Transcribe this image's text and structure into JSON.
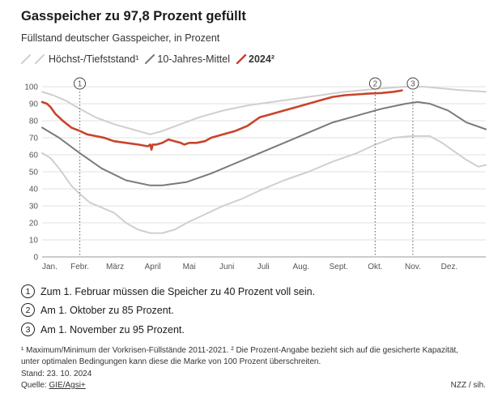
{
  "header": {
    "title": "Gasspeicher zu 97,8 Prozent gefüllt",
    "subtitle": "Füllstand deutscher Gasspeicher, in Prozent"
  },
  "legend": {
    "minmax": "Höchst-/Tiefststand¹",
    "mean": "10-Jahres-Mittel",
    "current": "2024²"
  },
  "colors": {
    "current": "#c9432b",
    "mean": "#7a7a7a",
    "minmax": "#cfcfcf",
    "grid": "#e2e2e2",
    "marker": "#777777"
  },
  "chart_data": {
    "type": "line",
    "x_unit": "day_of_year",
    "xlim": [
      1,
      366
    ],
    "ylim": [
      0,
      100
    ],
    "y_ticks": [
      0,
      10,
      20,
      30,
      40,
      50,
      60,
      70,
      80,
      90,
      100
    ],
    "x_ticks": [
      {
        "day": 1,
        "label": "Jan."
      },
      {
        "day": 32,
        "label": "Febr."
      },
      {
        "day": 61,
        "label": "März"
      },
      {
        "day": 92,
        "label": "April"
      },
      {
        "day": 122,
        "label": "Mai"
      },
      {
        "day": 153,
        "label": "Juni"
      },
      {
        "day": 183,
        "label": "Juli"
      },
      {
        "day": 214,
        "label": "Aug."
      },
      {
        "day": 245,
        "label": "Sept."
      },
      {
        "day": 275,
        "label": "Okt."
      },
      {
        "day": 306,
        "label": "Nov."
      },
      {
        "day": 336,
        "label": "Dez."
      }
    ],
    "markers": [
      {
        "day": 32,
        "label": "1",
        "target": 40
      },
      {
        "day": 275,
        "label": "2",
        "target": 85
      },
      {
        "day": 306,
        "label": "3",
        "target": 95
      }
    ],
    "series": [
      {
        "name": "Höchst-/Tiefststand¹",
        "role": "max",
        "x": [
          1,
          10,
          20,
          32,
          45,
          60,
          75,
          90,
          100,
          115,
          130,
          150,
          170,
          190,
          210,
          230,
          250,
          265,
          280,
          300,
          315,
          330,
          345,
          366
        ],
        "y": [
          97,
          95,
          92,
          87,
          82,
          78,
          75,
          72,
          74,
          78,
          82,
          86,
          89,
          91,
          93,
          95,
          97,
          98,
          99,
          100,
          100,
          99,
          98,
          97
        ]
      },
      {
        "name": "Höchst-/Tiefststand¹",
        "role": "min",
        "x": [
          1,
          8,
          15,
          25,
          32,
          40,
          50,
          60,
          70,
          80,
          90,
          100,
          110,
          120,
          135,
          150,
          165,
          180,
          200,
          220,
          240,
          260,
          275,
          290,
          305,
          320,
          330,
          340,
          350,
          360,
          366
        ],
        "y": [
          61,
          58,
          52,
          42,
          37,
          32,
          29,
          26,
          20,
          16,
          14,
          14,
          16,
          20,
          25,
          30,
          34,
          39,
          45,
          50,
          56,
          61,
          66,
          70,
          71,
          71,
          67,
          62,
          57,
          53,
          54
        ]
      },
      {
        "name": "10-Jahres-Mittel",
        "role": "mean",
        "x": [
          1,
          15,
          32,
          50,
          70,
          90,
          100,
          120,
          140,
          160,
          180,
          200,
          220,
          240,
          260,
          280,
          300,
          310,
          320,
          335,
          350,
          366
        ],
        "y": [
          76,
          70,
          61,
          52,
          45,
          42,
          42,
          44,
          49,
          55,
          61,
          67,
          73,
          79,
          83,
          87,
          90,
          91,
          90,
          86,
          79,
          75
        ]
      },
      {
        "name": "2024²",
        "role": "current",
        "x": [
          1,
          5,
          8,
          12,
          18,
          25,
          32,
          38,
          45,
          52,
          60,
          70,
          80,
          88,
          90,
          91,
          92,
          95,
          100,
          105,
          110,
          115,
          118,
          122,
          128,
          135,
          140,
          150,
          160,
          170,
          180,
          190,
          200,
          210,
          220,
          230,
          240,
          250,
          260,
          270,
          280,
          290,
          297
        ],
        "y": [
          91,
          90,
          88,
          84,
          80,
          76,
          74,
          72,
          71,
          70,
          68,
          67,
          66,
          65,
          66,
          63,
          66,
          66,
          67,
          69,
          68,
          67,
          66,
          67,
          67,
          68,
          70,
          72,
          74,
          77,
          82,
          84,
          86,
          88,
          90,
          92,
          94,
          95,
          95.5,
          96,
          96.3,
          97,
          97.8
        ]
      }
    ]
  },
  "notes": [
    {
      "num": "1",
      "text": "Zum 1. Februar müssen die Speicher zu 40 Prozent voll sein."
    },
    {
      "num": "2",
      "text": "Am 1. Oktober zu 85 Prozent."
    },
    {
      "num": "3",
      "text": "Am 1. November zu 95 Prozent."
    }
  ],
  "footnote": "¹ Maximum/Minimum der Vorkrisen-Füllstände 2011-2021. ² Die Prozent-Angabe bezieht sich auf die gesicherte Kapazität, unter optimalen Bedingungen kann diese die Marke von 100 Prozent überschreiten.",
  "stand": "Stand: 23. 10. 2024",
  "source": {
    "label": "Quelle:",
    "link": "GIE/Agsi+"
  },
  "credit": "NZZ / sih."
}
